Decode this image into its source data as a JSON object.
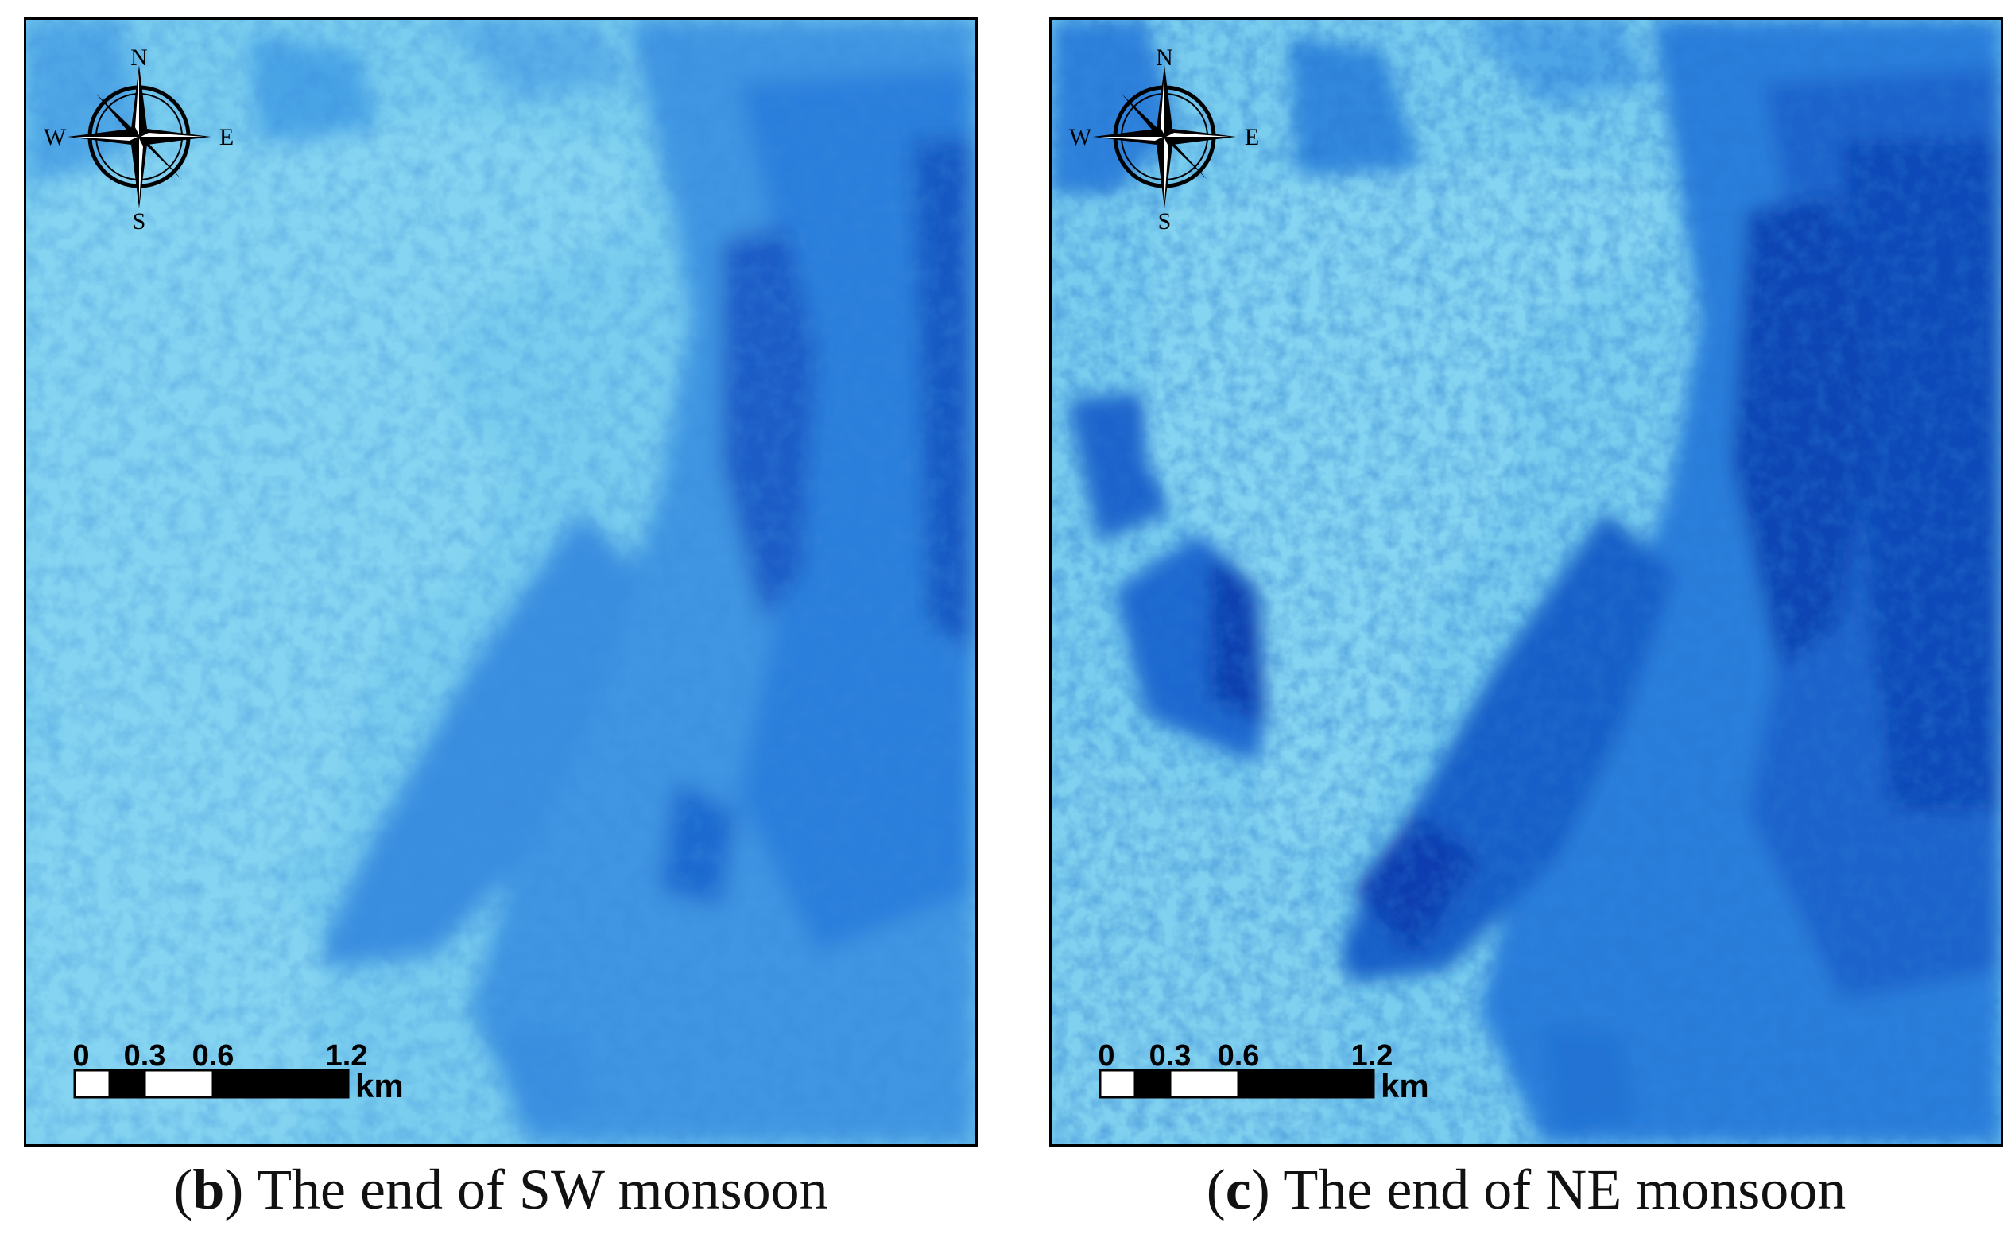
{
  "panels": [
    {
      "id": "b",
      "caption_letter": "b",
      "caption_text": "The end of SW monsoon",
      "compass": {
        "n": "N",
        "s": "S",
        "e": "E",
        "w": "W"
      },
      "scale": {
        "ticks": [
          "0",
          "0.3",
          "0.6",
          "1.2"
        ],
        "unit": "km"
      }
    },
    {
      "id": "c",
      "caption_letter": "c",
      "caption_text": "The end of NE monsoon",
      "compass": {
        "n": "N",
        "s": "S",
        "e": "E",
        "w": "W"
      },
      "scale": {
        "ticks": [
          "0",
          "0.3",
          "0.6",
          "1.2"
        ],
        "unit": "km"
      }
    }
  ],
  "colors": {
    "shallow": "#7fd0ef",
    "mid": "#56b6ea",
    "deep": "#1f6fd6",
    "deepest": "#0a3fb0"
  }
}
